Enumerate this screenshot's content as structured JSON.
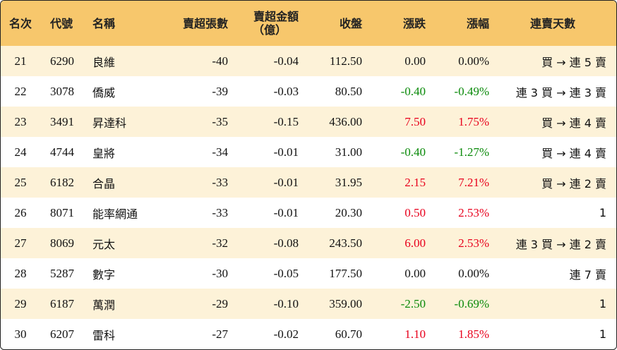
{
  "headers": {
    "rank": "名次",
    "code": "代號",
    "name": "名稱",
    "lots": "賣超張數",
    "amount_line1": "賣超金額",
    "amount_line2": "（億）",
    "close": "收盤",
    "change": "漲跌",
    "pct": "漲幅",
    "streak": "連賣天數"
  },
  "colors": {
    "header_bg": "#f7c76c",
    "alt_row_bg": "#fdf2d8",
    "up": "#e8001c",
    "down": "#0a8a0a"
  },
  "rows": [
    {
      "rank": "21",
      "code": "6290",
      "name": "良維",
      "lots": "-40",
      "amount": "-0.04",
      "close": "112.50",
      "change": "0.00",
      "pct": "0.00%",
      "dir": "flat",
      "streak": "買 → 連 5 賣"
    },
    {
      "rank": "22",
      "code": "3078",
      "name": "僑威",
      "lots": "-39",
      "amount": "-0.03",
      "close": "80.50",
      "change": "-0.40",
      "pct": "-0.49%",
      "dir": "down",
      "streak": "連 3 買 → 連 3 賣"
    },
    {
      "rank": "23",
      "code": "3491",
      "name": "昇達科",
      "lots": "-35",
      "amount": "-0.15",
      "close": "436.00",
      "change": "7.50",
      "pct": "1.75%",
      "dir": "up",
      "streak": "買 → 連 4 賣"
    },
    {
      "rank": "24",
      "code": "4744",
      "name": "皇將",
      "lots": "-34",
      "amount": "-0.01",
      "close": "31.00",
      "change": "-0.40",
      "pct": "-1.27%",
      "dir": "down",
      "streak": "買 → 連 4 賣"
    },
    {
      "rank": "25",
      "code": "6182",
      "name": "合晶",
      "lots": "-33",
      "amount": "-0.01",
      "close": "31.95",
      "change": "2.15",
      "pct": "7.21%",
      "dir": "up",
      "streak": "買 → 連 2 賣"
    },
    {
      "rank": "26",
      "code": "8071",
      "name": "能率網通",
      "lots": "-33",
      "amount": "-0.01",
      "close": "20.30",
      "change": "0.50",
      "pct": "2.53%",
      "dir": "up",
      "streak": "1"
    },
    {
      "rank": "27",
      "code": "8069",
      "name": "元太",
      "lots": "-32",
      "amount": "-0.08",
      "close": "243.50",
      "change": "6.00",
      "pct": "2.53%",
      "dir": "up",
      "streak": "連 3 買 → 連 2 賣"
    },
    {
      "rank": "28",
      "code": "5287",
      "name": "數字",
      "lots": "-30",
      "amount": "-0.05",
      "close": "177.50",
      "change": "0.00",
      "pct": "0.00%",
      "dir": "flat",
      "streak": "連 7 賣"
    },
    {
      "rank": "29",
      "code": "6187",
      "name": "萬潤",
      "lots": "-29",
      "amount": "-0.10",
      "close": "359.00",
      "change": "-2.50",
      "pct": "-0.69%",
      "dir": "down",
      "streak": "1"
    },
    {
      "rank": "30",
      "code": "6207",
      "name": "雷科",
      "lots": "-27",
      "amount": "-0.02",
      "close": "60.70",
      "change": "1.10",
      "pct": "1.85%",
      "dir": "up",
      "streak": "1"
    }
  ]
}
